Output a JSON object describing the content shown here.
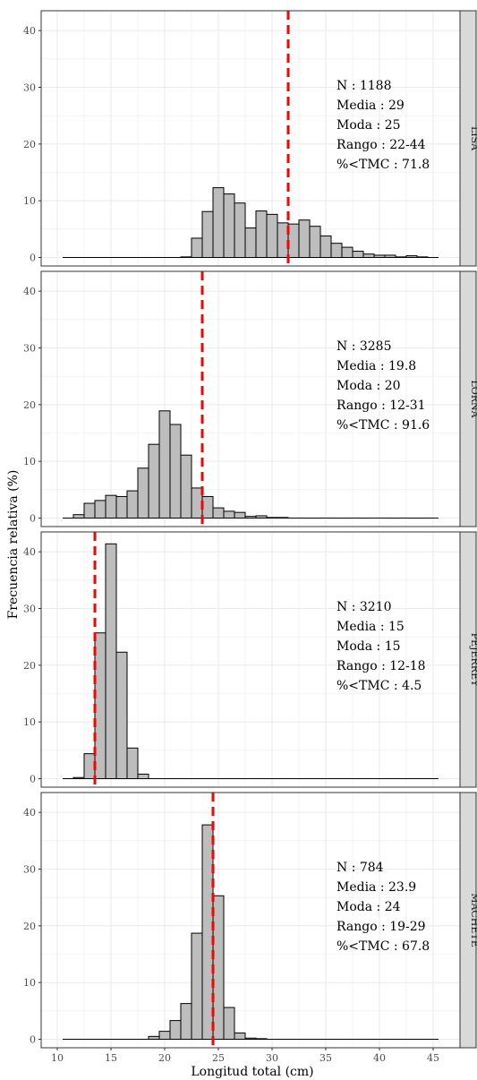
{
  "chart_data": {
    "type": "bar",
    "xlabel": "Longitud total (cm)",
    "ylabel": "Frecuencia relativa (%)",
    "xlim": [
      8.5,
      47.5
    ],
    "x_ticks": [
      10,
      15,
      20,
      25,
      30,
      35,
      40,
      45
    ],
    "y_ticks": [
      0,
      10,
      20,
      30,
      40
    ],
    "ylim": [
      -1.5,
      43.5
    ],
    "bin_width": 1,
    "x_range": [
      10.5,
      45.5
    ],
    "grid": true,
    "colors": {
      "bar_fill": "#bdbdbd",
      "bar_stroke": "#000000",
      "mean_line": "#ff0000",
      "strip_bg": "#d9d9d9",
      "grid": "#ebebeb"
    },
    "panels": [
      {
        "label": "LISA",
        "mean_line_x": 31.5,
        "annotation": {
          "n": "N : 1188",
          "media": "Media :  29",
          "moda": "Moda :   25",
          "rango": "Rango :  22-44",
          "tmc": "%<TMC :  71.8"
        },
        "bins": [
          {
            "x": 22,
            "y": 0.1
          },
          {
            "x": 23,
            "y": 3.4
          },
          {
            "x": 24,
            "y": 8.1
          },
          {
            "x": 25,
            "y": 12.3
          },
          {
            "x": 26,
            "y": 11.2
          },
          {
            "x": 27,
            "y": 9.6
          },
          {
            "x": 28,
            "y": 5.2
          },
          {
            "x": 29,
            "y": 8.2
          },
          {
            "x": 30,
            "y": 7.6
          },
          {
            "x": 31,
            "y": 6.1
          },
          {
            "x": 32,
            "y": 5.9
          },
          {
            "x": 33,
            "y": 6.6
          },
          {
            "x": 34,
            "y": 5.5
          },
          {
            "x": 35,
            "y": 3.8
          },
          {
            "x": 36,
            "y": 2.5
          },
          {
            "x": 37,
            "y": 1.8
          },
          {
            "x": 38,
            "y": 1.1
          },
          {
            "x": 39,
            "y": 0.6
          },
          {
            "x": 40,
            "y": 0.4
          },
          {
            "x": 41,
            "y": 0.4
          },
          {
            "x": 42,
            "y": 0.1
          },
          {
            "x": 43,
            "y": 0.3
          },
          {
            "x": 44,
            "y": 0.1
          }
        ]
      },
      {
        "label": "LORNA",
        "mean_line_x": 23.5,
        "annotation": {
          "n": "N : 3285",
          "media": "Media :  19.8",
          "moda": "Moda :   20",
          "rango": "Rango :  12-31",
          "tmc": "%<TMC :  91.6"
        },
        "bins": [
          {
            "x": 12,
            "y": 0.6
          },
          {
            "x": 13,
            "y": 2.6
          },
          {
            "x": 14,
            "y": 3.1
          },
          {
            "x": 15,
            "y": 4.0
          },
          {
            "x": 16,
            "y": 3.8
          },
          {
            "x": 17,
            "y": 4.8
          },
          {
            "x": 18,
            "y": 8.8
          },
          {
            "x": 19,
            "y": 13.0
          },
          {
            "x": 20,
            "y": 18.9
          },
          {
            "x": 21,
            "y": 16.5
          },
          {
            "x": 22,
            "y": 11.1
          },
          {
            "x": 23,
            "y": 5.3
          },
          {
            "x": 24,
            "y": 3.8
          },
          {
            "x": 25,
            "y": 1.8
          },
          {
            "x": 26,
            "y": 1.2
          },
          {
            "x": 27,
            "y": 1.0
          },
          {
            "x": 28,
            "y": 0.3
          },
          {
            "x": 29,
            "y": 0.4
          },
          {
            "x": 30,
            "y": 0.1
          },
          {
            "x": 31,
            "y": 0.1
          }
        ]
      },
      {
        "label": "PEJERREY",
        "mean_line_x": 13.5,
        "annotation": {
          "n": "N : 3210",
          "media": "Media :  15",
          "moda": "Moda :   15",
          "rango": "Rango :  12-18",
          "tmc": "%<TMC :  4.5"
        },
        "bins": [
          {
            "x": 12,
            "y": 0.2
          },
          {
            "x": 13,
            "y": 4.4
          },
          {
            "x": 14,
            "y": 25.7
          },
          {
            "x": 15,
            "y": 41.4
          },
          {
            "x": 16,
            "y": 22.3
          },
          {
            "x": 17,
            "y": 5.4
          },
          {
            "x": 18,
            "y": 0.8
          }
        ]
      },
      {
        "label": "MACHETE",
        "mean_line_x": 24.5,
        "annotation": {
          "n": "N : 784",
          "media": "Media :  23.9",
          "moda": "Moda :   24",
          "rango": "Rango :  19-29",
          "tmc": "%<TMC :  67.8"
        },
        "bins": [
          {
            "x": 19,
            "y": 0.5
          },
          {
            "x": 20,
            "y": 1.4
          },
          {
            "x": 21,
            "y": 3.3
          },
          {
            "x": 22,
            "y": 6.3
          },
          {
            "x": 23,
            "y": 18.7
          },
          {
            "x": 24,
            "y": 37.8
          },
          {
            "x": 25,
            "y": 25.3
          },
          {
            "x": 26,
            "y": 5.6
          },
          {
            "x": 27,
            "y": 1.1
          },
          {
            "x": 28,
            "y": 0.2
          },
          {
            "x": 29,
            "y": 0.1
          }
        ]
      }
    ]
  }
}
